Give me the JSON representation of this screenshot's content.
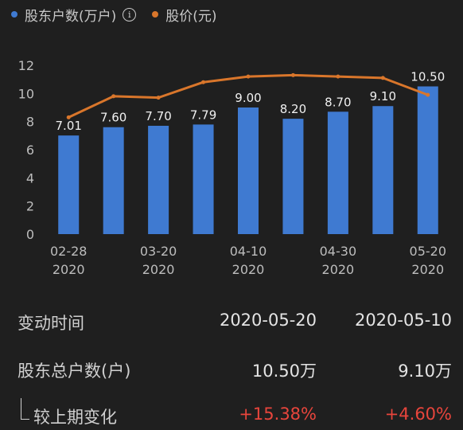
{
  "legend": {
    "bars_label": "股东户数(万户)",
    "line_label": "股价(元)",
    "bar_color": "#3f7ad1",
    "line_color": "#d9762b",
    "info_icon": "i"
  },
  "chart_data": {
    "type": "bar+line",
    "x": [
      "02-28\n2020",
      "",
      "03-20\n2020",
      "",
      "04-10\n2020",
      "",
      "04-30\n2020",
      "",
      "05-20\n2020"
    ],
    "tick_labels": [
      {
        "line1": "02-28",
        "line2": "2020"
      },
      {
        "line1": "03-20",
        "line2": "2020"
      },
      {
        "line1": "04-10",
        "line2": "2020"
      },
      {
        "line1": "04-30",
        "line2": "2020"
      },
      {
        "line1": "05-20",
        "line2": "2020"
      }
    ],
    "bars": {
      "name": "股东户数(万户)",
      "values": [
        7.01,
        7.6,
        7.7,
        7.79,
        9.0,
        8.2,
        8.7,
        9.1,
        10.5
      ],
      "labels": [
        "7.01",
        "7.60",
        "7.70",
        "7.79",
        "9.00",
        "8.20",
        "8.70",
        "9.10",
        "10.50"
      ]
    },
    "line": {
      "name": "股价(元)",
      "values": [
        8.3,
        9.8,
        9.7,
        10.8,
        11.2,
        11.3,
        11.2,
        11.1,
        9.9
      ]
    },
    "ylim": [
      0,
      12
    ],
    "yticks": [
      "0",
      "2",
      "4",
      "6",
      "8",
      "10",
      "12"
    ]
  },
  "table": {
    "rows": [
      {
        "label": "变动时间",
        "v1": "2020-05-20",
        "v2": "2020-05-10"
      },
      {
        "label": "股东总户数(户)",
        "v1": "10.50万",
        "v2": "9.10万"
      },
      {
        "label": "较上期变化",
        "v1": "+15.38%",
        "v2": "+4.60%"
      }
    ]
  }
}
